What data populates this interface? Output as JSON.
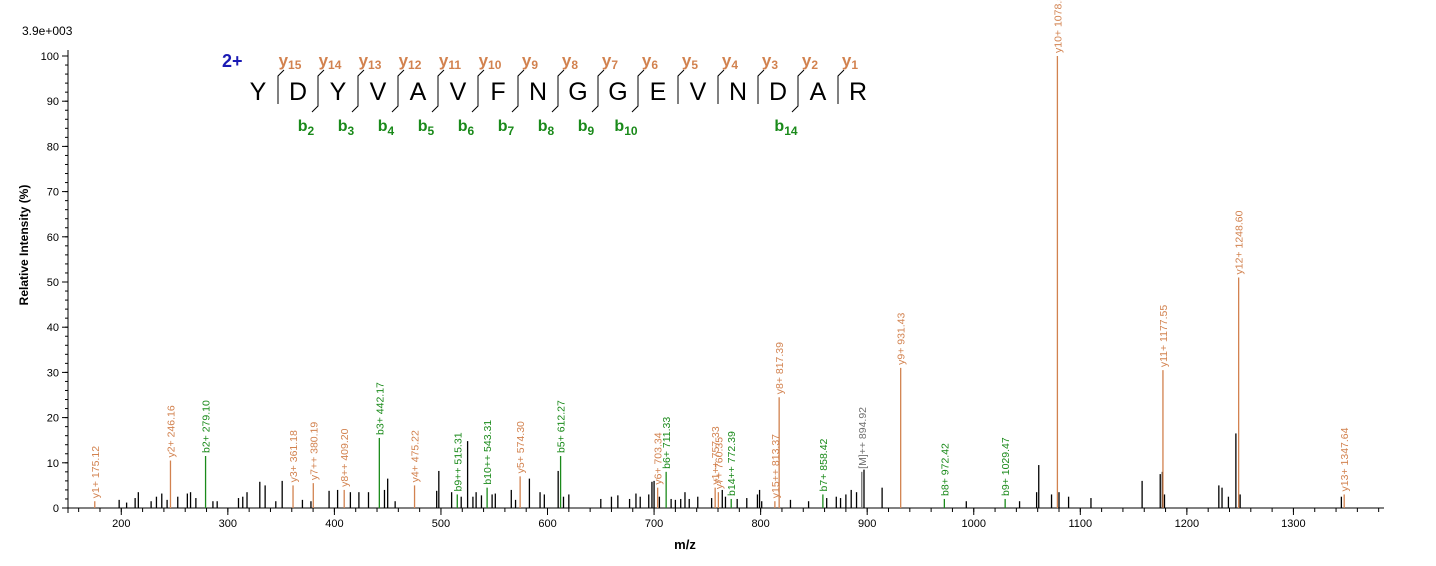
{
  "chart_data": {
    "type": "bar",
    "subtype": "mass-spectrum",
    "scale_label": "3.9e+003",
    "xlabel": "m/z",
    "ylabel": "Relative   Intensity (%)",
    "xlim": [
      150,
      1385
    ],
    "ylim": [
      0,
      100
    ],
    "x_ticks": [
      200,
      300,
      400,
      500,
      600,
      700,
      800,
      900,
      1000,
      1100,
      1200,
      1300
    ],
    "y_ticks": [
      0,
      10,
      20,
      30,
      40,
      50,
      60,
      70,
      80,
      90,
      100
    ],
    "grid": false,
    "colors": {
      "y_ion": "#d2824f",
      "b_ion": "#1a8a1a",
      "other_ion": "#707070",
      "peak": "#000000",
      "charge": "#1a1ab4",
      "sequence": "#000000"
    },
    "sequence": {
      "charge": "2+",
      "residues": [
        "Y",
        "D",
        "Y",
        "V",
        "A",
        "V",
        "F",
        "N",
        "G",
        "G",
        "E",
        "V",
        "N",
        "D",
        "A",
        "R"
      ],
      "y_labels": [
        {
          "ion": "y",
          "num": "15",
          "pos": 1
        },
        {
          "ion": "y",
          "num": "14",
          "pos": 2
        },
        {
          "ion": "y",
          "num": "13",
          "pos": 3
        },
        {
          "ion": "y",
          "num": "12",
          "pos": 4
        },
        {
          "ion": "y",
          "num": "11",
          "pos": 5
        },
        {
          "ion": "y",
          "num": "10",
          "pos": 6
        },
        {
          "ion": "y",
          "num": "9",
          "pos": 7
        },
        {
          "ion": "y",
          "num": "8",
          "pos": 8
        },
        {
          "ion": "y",
          "num": "7",
          "pos": 9
        },
        {
          "ion": "y",
          "num": "6",
          "pos": 10
        },
        {
          "ion": "y",
          "num": "5",
          "pos": 11
        },
        {
          "ion": "y",
          "num": "4",
          "pos": 12
        },
        {
          "ion": "y",
          "num": "3",
          "pos": 13
        },
        {
          "ion": "y",
          "num": "2",
          "pos": 14
        },
        {
          "ion": "y",
          "num": "1",
          "pos": 15
        }
      ],
      "b_labels": [
        {
          "ion": "b",
          "num": "2",
          "pos": 2
        },
        {
          "ion": "b",
          "num": "3",
          "pos": 3
        },
        {
          "ion": "b",
          "num": "4",
          "pos": 4
        },
        {
          "ion": "b",
          "num": "5",
          "pos": 5
        },
        {
          "ion": "b",
          "num": "6",
          "pos": 6
        },
        {
          "ion": "b",
          "num": "7",
          "pos": 7
        },
        {
          "ion": "b",
          "num": "8",
          "pos": 8
        },
        {
          "ion": "b",
          "num": "9",
          "pos": 9
        },
        {
          "ion": "b",
          "num": "10",
          "pos": 10
        },
        {
          "ion": "b",
          "num": "14",
          "pos": 14
        }
      ]
    },
    "annotated_peaks": [
      {
        "mz": 175.12,
        "intensity": 1.5,
        "label": "y1+ 175.12",
        "ion": "y"
      },
      {
        "mz": 246.16,
        "intensity": 10.5,
        "label": "y2+ 246.16",
        "ion": "y"
      },
      {
        "mz": 279.1,
        "intensity": 11.5,
        "label": "b2+ 279.10",
        "ion": "b"
      },
      {
        "mz": 361.18,
        "intensity": 5,
        "label": "y3+ 361.18",
        "ion": "y"
      },
      {
        "mz": 380.19,
        "intensity": 5.5,
        "label": "y7++ 380.19",
        "ion": "y"
      },
      {
        "mz": 409.2,
        "intensity": 4,
        "label": "y8++ 409.20",
        "ion": "y"
      },
      {
        "mz": 442.17,
        "intensity": 15.5,
        "label": "b3+ 442.17",
        "ion": "b"
      },
      {
        "mz": 475.22,
        "intensity": 5,
        "label": "y4+ 475.22",
        "ion": "y"
      },
      {
        "mz": 515.31,
        "intensity": 3,
        "label": "b9++ 515.31",
        "ion": "b"
      },
      {
        "mz": 543.31,
        "intensity": 4.5,
        "label": "b10++ 543.31",
        "ion": "b"
      },
      {
        "mz": 574.3,
        "intensity": 7,
        "label": "y5+ 574.30",
        "ion": "y"
      },
      {
        "mz": 612.27,
        "intensity": 11.5,
        "label": "b5+ 612.27",
        "ion": "b"
      },
      {
        "mz": 703.34,
        "intensity": 4.5,
        "label": "y6+ 703.34",
        "ion": "y"
      },
      {
        "mz": 711.33,
        "intensity": 8,
        "label": "b6+ 711.33",
        "ion": "b"
      },
      {
        "mz": 757.33,
        "intensity": 4.5,
        "label": "y1++ 757.33",
        "ion": "y"
      },
      {
        "mz": 760.35,
        "intensity": 3.5,
        "label": "y7+ 760.35",
        "ion": "y"
      },
      {
        "mz": 772.39,
        "intensity": 2,
        "label": "b14++ 772.39",
        "ion": "b"
      },
      {
        "mz": 813.37,
        "intensity": 1.5,
        "label": "y15++ 813.37",
        "ion": "y"
      },
      {
        "mz": 817.39,
        "intensity": 24.5,
        "label": "y8+ 817.39",
        "ion": "y"
      },
      {
        "mz": 858.42,
        "intensity": 3,
        "label": "b7+ 858.42",
        "ion": "b"
      },
      {
        "mz": 894.92,
        "intensity": 8,
        "label": "[M]++ 894.92",
        "ion": "other"
      },
      {
        "mz": 931.43,
        "intensity": 31,
        "label": "y9+ 931.43",
        "ion": "y"
      },
      {
        "mz": 972.42,
        "intensity": 2,
        "label": "b8+ 972.42",
        "ion": "b"
      },
      {
        "mz": 1029.47,
        "intensity": 2,
        "label": "b9+ 1029.47",
        "ion": "b"
      },
      {
        "mz": 1078.5,
        "intensity": 100,
        "label": "y10+ 1078.50",
        "ion": "y"
      },
      {
        "mz": 1177.55,
        "intensity": 30.5,
        "label": "y11+ 1177.55",
        "ion": "y"
      },
      {
        "mz": 1248.6,
        "intensity": 51,
        "label": "y12+ 1248.60",
        "ion": "y"
      },
      {
        "mz": 1347.64,
        "intensity": 3,
        "label": "y13+ 1347.64",
        "ion": "y"
      }
    ],
    "unannotated_peaks": [
      {
        "mz": 198,
        "intensity": 1.8
      },
      {
        "mz": 205,
        "intensity": 1.2
      },
      {
        "mz": 213,
        "intensity": 2.2
      },
      {
        "mz": 216,
        "intensity": 3.5
      },
      {
        "mz": 228,
        "intensity": 1.5
      },
      {
        "mz": 233,
        "intensity": 2.5
      },
      {
        "mz": 238,
        "intensity": 3.2
      },
      {
        "mz": 243,
        "intensity": 1.8
      },
      {
        "mz": 253,
        "intensity": 2.5
      },
      {
        "mz": 262,
        "intensity": 3.2
      },
      {
        "mz": 265,
        "intensity": 3.5
      },
      {
        "mz": 270,
        "intensity": 2.2
      },
      {
        "mz": 286,
        "intensity": 1.5
      },
      {
        "mz": 290,
        "intensity": 1.5
      },
      {
        "mz": 310,
        "intensity": 2.2
      },
      {
        "mz": 314,
        "intensity": 2.5
      },
      {
        "mz": 318,
        "intensity": 3.5
      },
      {
        "mz": 330,
        "intensity": 5.8
      },
      {
        "mz": 335,
        "intensity": 5
      },
      {
        "mz": 345,
        "intensity": 1.5
      },
      {
        "mz": 351,
        "intensity": 6
      },
      {
        "mz": 370,
        "intensity": 1.8
      },
      {
        "mz": 378,
        "intensity": 1.5
      },
      {
        "mz": 395,
        "intensity": 3.8
      },
      {
        "mz": 403,
        "intensity": 4
      },
      {
        "mz": 415,
        "intensity": 3.5
      },
      {
        "mz": 423,
        "intensity": 3.5
      },
      {
        "mz": 432,
        "intensity": 3.5
      },
      {
        "mz": 447,
        "intensity": 4
      },
      {
        "mz": 450,
        "intensity": 6.5
      },
      {
        "mz": 457,
        "intensity": 1.5
      },
      {
        "mz": 496,
        "intensity": 3.8
      },
      {
        "mz": 498,
        "intensity": 8.2
      },
      {
        "mz": 510,
        "intensity": 3.5
      },
      {
        "mz": 519,
        "intensity": 2.5
      },
      {
        "mz": 525,
        "intensity": 14.8
      },
      {
        "mz": 530,
        "intensity": 2.5
      },
      {
        "mz": 533,
        "intensity": 3.5
      },
      {
        "mz": 538,
        "intensity": 2.8
      },
      {
        "mz": 548,
        "intensity": 3
      },
      {
        "mz": 551,
        "intensity": 3.2
      },
      {
        "mz": 566,
        "intensity": 4
      },
      {
        "mz": 570,
        "intensity": 1.8
      },
      {
        "mz": 583,
        "intensity": 6.5
      },
      {
        "mz": 593,
        "intensity": 3.5
      },
      {
        "mz": 597,
        "intensity": 3
      },
      {
        "mz": 610,
        "intensity": 8.2
      },
      {
        "mz": 615,
        "intensity": 2.5
      },
      {
        "mz": 620,
        "intensity": 3
      },
      {
        "mz": 650,
        "intensity": 2
      },
      {
        "mz": 660,
        "intensity": 2.5
      },
      {
        "mz": 666,
        "intensity": 2.8
      },
      {
        "mz": 677,
        "intensity": 2
      },
      {
        "mz": 683,
        "intensity": 3.2
      },
      {
        "mz": 687,
        "intensity": 2.5
      },
      {
        "mz": 695,
        "intensity": 3
      },
      {
        "mz": 698,
        "intensity": 5.8
      },
      {
        "mz": 700,
        "intensity": 6
      },
      {
        "mz": 705,
        "intensity": 2.5
      },
      {
        "mz": 716,
        "intensity": 2
      },
      {
        "mz": 720,
        "intensity": 1.8
      },
      {
        "mz": 725,
        "intensity": 2
      },
      {
        "mz": 729,
        "intensity": 3.5
      },
      {
        "mz": 733,
        "intensity": 2
      },
      {
        "mz": 741,
        "intensity": 2.5
      },
      {
        "mz": 754,
        "intensity": 2.2
      },
      {
        "mz": 764,
        "intensity": 4
      },
      {
        "mz": 767,
        "intensity": 2.5
      },
      {
        "mz": 778,
        "intensity": 2
      },
      {
        "mz": 787,
        "intensity": 2.2
      },
      {
        "mz": 797,
        "intensity": 3
      },
      {
        "mz": 799,
        "intensity": 4
      },
      {
        "mz": 801,
        "intensity": 1.5
      },
      {
        "mz": 828,
        "intensity": 1.8
      },
      {
        "mz": 845,
        "intensity": 1.5
      },
      {
        "mz": 862,
        "intensity": 2.2
      },
      {
        "mz": 871,
        "intensity": 2.5
      },
      {
        "mz": 875,
        "intensity": 2.2
      },
      {
        "mz": 880,
        "intensity": 3
      },
      {
        "mz": 885,
        "intensity": 4
      },
      {
        "mz": 890,
        "intensity": 3.5
      },
      {
        "mz": 897,
        "intensity": 8.5
      },
      {
        "mz": 914,
        "intensity": 4.5
      },
      {
        "mz": 993,
        "intensity": 1.5
      },
      {
        "mz": 1043,
        "intensity": 1.5
      },
      {
        "mz": 1059,
        "intensity": 3.5
      },
      {
        "mz": 1061,
        "intensity": 9.5
      },
      {
        "mz": 1073,
        "intensity": 3
      },
      {
        "mz": 1080,
        "intensity": 3.5
      },
      {
        "mz": 1089,
        "intensity": 2.5
      },
      {
        "mz": 1110,
        "intensity": 2.2
      },
      {
        "mz": 1158,
        "intensity": 6
      },
      {
        "mz": 1175,
        "intensity": 7.5
      },
      {
        "mz": 1177,
        "intensity": 8
      },
      {
        "mz": 1179,
        "intensity": 3
      },
      {
        "mz": 1230,
        "intensity": 5
      },
      {
        "mz": 1233,
        "intensity": 4.5
      },
      {
        "mz": 1239,
        "intensity": 2.5
      },
      {
        "mz": 1246,
        "intensity": 16.5
      },
      {
        "mz": 1250,
        "intensity": 3
      },
      {
        "mz": 1345,
        "intensity": 2.5
      }
    ]
  }
}
